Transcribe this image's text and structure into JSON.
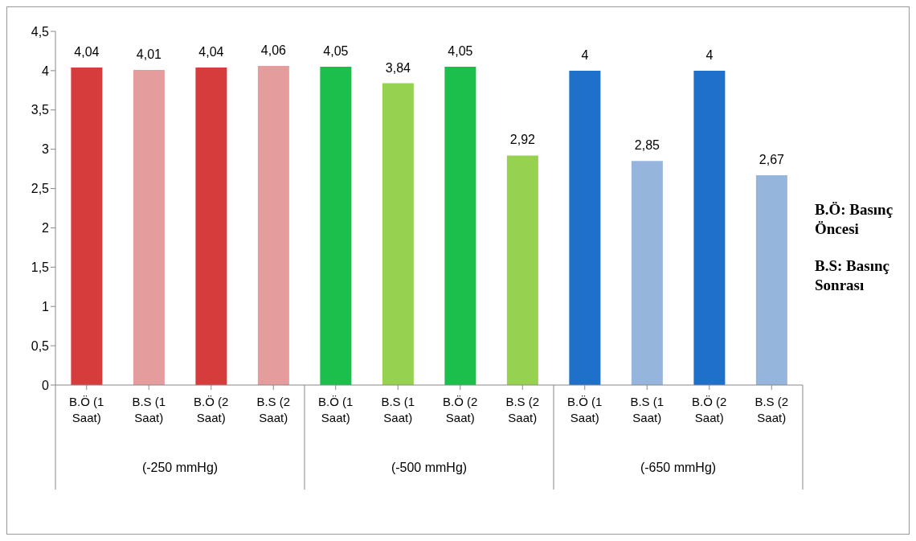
{
  "chart_data": {
    "type": "bar",
    "categories": [
      "B.Ö (1 Saat)",
      "B.S (1 Saat)",
      "B.Ö (2 Saat)",
      "B.S (2 Saat)",
      "B.Ö (1 Saat)",
      "B.S (1 Saat)",
      "B.Ö (2 Saat)",
      "B.S (2 Saat)",
      "B.Ö (1 Saat)",
      "B.S (1 Saat)",
      "B.Ö (2 Saat)",
      "B.S (2 Saat)"
    ],
    "values": [
      4.04,
      4.01,
      4.04,
      4.06,
      4.05,
      3.84,
      4.05,
      2.92,
      4,
      2.85,
      4,
      2.67
    ],
    "colors": [
      "#d63c3c",
      "#e59c9c",
      "#d63c3c",
      "#e59c9c",
      "#1cbf4c",
      "#96d250",
      "#1cbf4c",
      "#96d250",
      "#1f70c8",
      "#96b5dc",
      "#1f70c8",
      "#96b5dc"
    ],
    "ylim": [
      0,
      4.5
    ],
    "yticks": [
      0,
      {
        "value": 0.5,
        "label": "0,5"
      },
      1,
      {
        "value": 1.5,
        "label": "1,5"
      },
      2,
      {
        "value": 2.5,
        "label": "2,5"
      },
      3,
      {
        "value": 3.5,
        "label": "3,5"
      },
      4,
      {
        "value": 4.5,
        "label": "4,5"
      }
    ],
    "value_labels": [
      "4,04",
      "4,01",
      "4,04",
      "4,06",
      "4,05",
      "3,84",
      "4,05",
      "2,92",
      "4",
      "2,85",
      "4",
      "2,67"
    ],
    "annotations": [
      "(-250 mmHg)",
      "(-500 mmHg)",
      "(-650 mmHg)",
      "B.Ö: Basınç Öncesi",
      "B.S: Basınç Sonrası"
    ]
  }
}
